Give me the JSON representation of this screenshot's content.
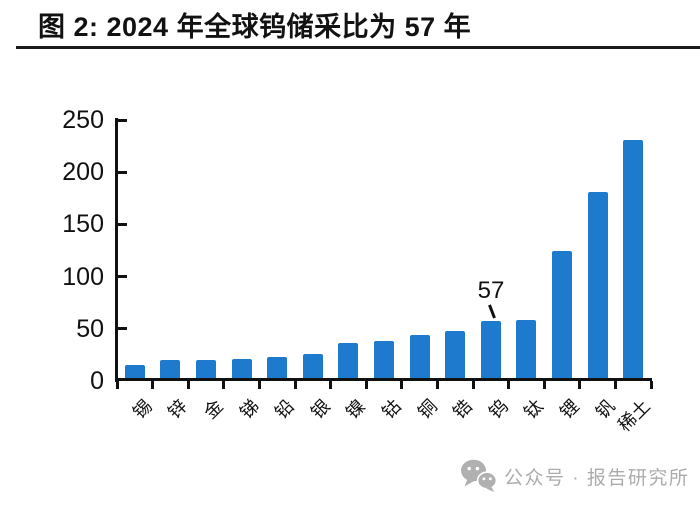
{
  "chart_data": {
    "type": "bar",
    "title": "图 2: 2024 年全球钨储采比为 57 年",
    "categories": [
      "锡",
      "锌",
      "金",
      "锑",
      "铅",
      "银",
      "镍",
      "钴",
      "铜",
      "锆",
      "钨",
      "钛",
      "锂",
      "钒",
      "稀土"
    ],
    "values": [
      15,
      20,
      20,
      21,
      23,
      26,
      36,
      38,
      44,
      48,
      57,
      58,
      125,
      181,
      231
    ],
    "unit": "年",
    "xlabel": "",
    "ylabel": "",
    "ylim": [
      0,
      250
    ],
    "yticks": [
      0,
      50,
      100,
      150,
      200,
      250
    ],
    "grid": false,
    "legend": null,
    "bar_color": "#1d7acc",
    "axis_color": "#111111",
    "annotation": {
      "text": "57",
      "category": "钨",
      "category_index": 10
    }
  },
  "watermark": {
    "icon": "wechat-icon",
    "text": "公众号 · 报告研究所",
    "color": "#acacac"
  }
}
